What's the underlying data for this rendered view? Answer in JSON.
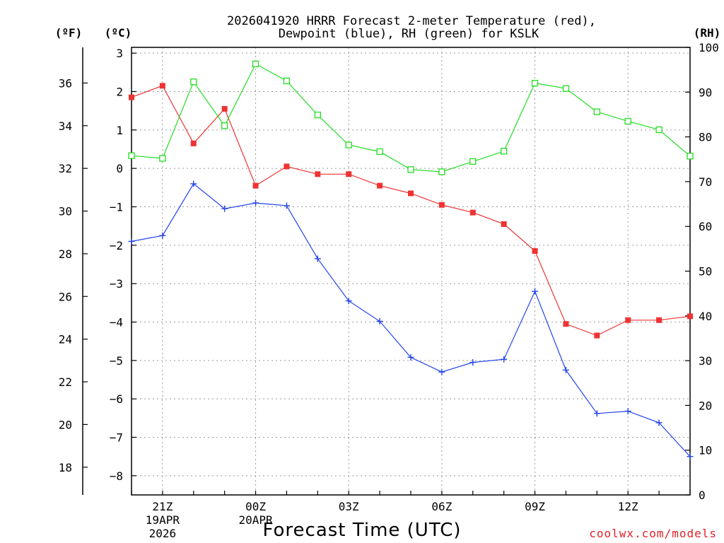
{
  "title_line1": "2026041920 HRRR Forecast 2-meter Temperature (red),",
  "title_line2": "Dewpoint (blue), RH (green) for KSLK",
  "unit_f": "(ºF)",
  "unit_c": "(ºC)",
  "unit_rh": "(RH)",
  "credit": "coolwx.com/models",
  "chart_data": {
    "type": "line",
    "title": "2026041920 HRRR Forecast 2-meter Temperature (red), Dewpoint (blue), RH (green) for KSLK",
    "xlabel": "Forecast Time (UTC)",
    "ylabel_left_outer": "(ºF)",
    "ylabel_left": "(ºC)",
    "ylabel_right": "(RH)",
    "x": [
      "20Z",
      "21Z",
      "22Z",
      "23Z",
      "00Z",
      "01Z",
      "02Z",
      "03Z",
      "04Z",
      "05Z",
      "06Z",
      "07Z",
      "08Z",
      "09Z",
      "10Z",
      "11Z",
      "12Z",
      "13Z",
      "14Z"
    ],
    "x_tick_labels": [
      {
        "index": 1,
        "lines": [
          "21Z",
          "19APR",
          "2026"
        ]
      },
      {
        "index": 4,
        "lines": [
          "00Z",
          "20APR"
        ]
      },
      {
        "index": 7,
        "lines": [
          "03Z"
        ]
      },
      {
        "index": 10,
        "lines": [
          "06Z"
        ]
      },
      {
        "index": 13,
        "lines": [
          "09Z"
        ]
      },
      {
        "index": 16,
        "lines": [
          "12Z"
        ]
      }
    ],
    "c_axis": {
      "range": [
        -8.5,
        3.15
      ],
      "ticks": [
        "3",
        "2",
        "1",
        "0",
        "−1",
        "−2",
        "−3",
        "−4",
        "−5",
        "−6",
        "−7",
        "−8"
      ],
      "values": [
        3,
        2,
        1,
        0,
        -1,
        -2,
        -3,
        -4,
        -5,
        -6,
        -7,
        -8
      ]
    },
    "f_axis": {
      "ticks": [
        "36",
        "34",
        "32",
        "30",
        "28",
        "26",
        "24",
        "22",
        "20",
        "18"
      ],
      "values": [
        36,
        34,
        32,
        30,
        28,
        26,
        24,
        22,
        20,
        18
      ]
    },
    "rh_axis": {
      "range": [
        0,
        100
      ],
      "ticks": [
        "100",
        "90",
        "80",
        "70",
        "60",
        "50",
        "40",
        "30",
        "20",
        "10",
        "0"
      ],
      "values": [
        100,
        90,
        80,
        70,
        60,
        50,
        40,
        30,
        20,
        10,
        0
      ]
    },
    "series": [
      {
        "name": "Temperature (red)",
        "color": "#ee3333",
        "axis": "c",
        "marker": "filled-square",
        "values": [
          1.85,
          2.15,
          0.65,
          1.55,
          -0.45,
          0.05,
          -0.15,
          -0.15,
          -0.45,
          -0.65,
          -0.95,
          -1.15,
          -1.45,
          -2.15,
          -4.05,
          -4.35,
          -3.95,
          -3.95,
          -3.85
        ]
      },
      {
        "name": "Dewpoint (blue)",
        "color": "#2244ee",
        "axis": "c",
        "marker": "plus",
        "values": [
          -1.9,
          -1.75,
          -0.4,
          -1.05,
          -0.9,
          -0.97,
          -2.35,
          -3.45,
          -3.98,
          -4.92,
          -5.3,
          -5.05,
          -4.97,
          -3.2,
          -5.25,
          -6.38,
          -6.32,
          -6.62,
          -7.5
        ]
      },
      {
        "name": "RH (green)",
        "color": "#22dd22",
        "axis": "rh",
        "marker": "open-square",
        "values": [
          75.8,
          75.2,
          92.3,
          82.5,
          96.3,
          92.5,
          84.9,
          78.2,
          76.7,
          72.7,
          72.2,
          74.5,
          76.8,
          92.0,
          90.8,
          85.6,
          83.5,
          81.6,
          75.7
        ]
      }
    ]
  }
}
